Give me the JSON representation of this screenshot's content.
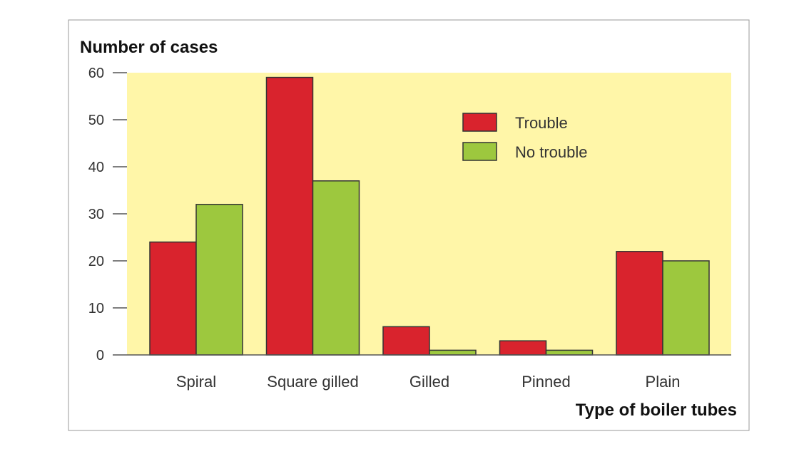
{
  "chart_data": {
    "type": "bar",
    "ylabel": "Number of cases",
    "xlabel": "Type of boiler tubes",
    "categories": [
      "Spiral",
      "Square gilled",
      "Gilled",
      "Pinned",
      "Plain"
    ],
    "series": [
      {
        "name": "Trouble",
        "values": [
          24,
          59,
          6,
          3,
          22
        ],
        "color": "#d9232d"
      },
      {
        "name": "No trouble",
        "values": [
          32,
          37,
          1,
          1,
          20
        ],
        "color": "#9dc83e"
      }
    ],
    "ylim": [
      0,
      60
    ],
    "yticks": [
      0,
      10,
      20,
      30,
      40,
      50,
      60
    ],
    "grid": false,
    "legend_position": "top-right",
    "plot_background": "#fff6a8"
  }
}
